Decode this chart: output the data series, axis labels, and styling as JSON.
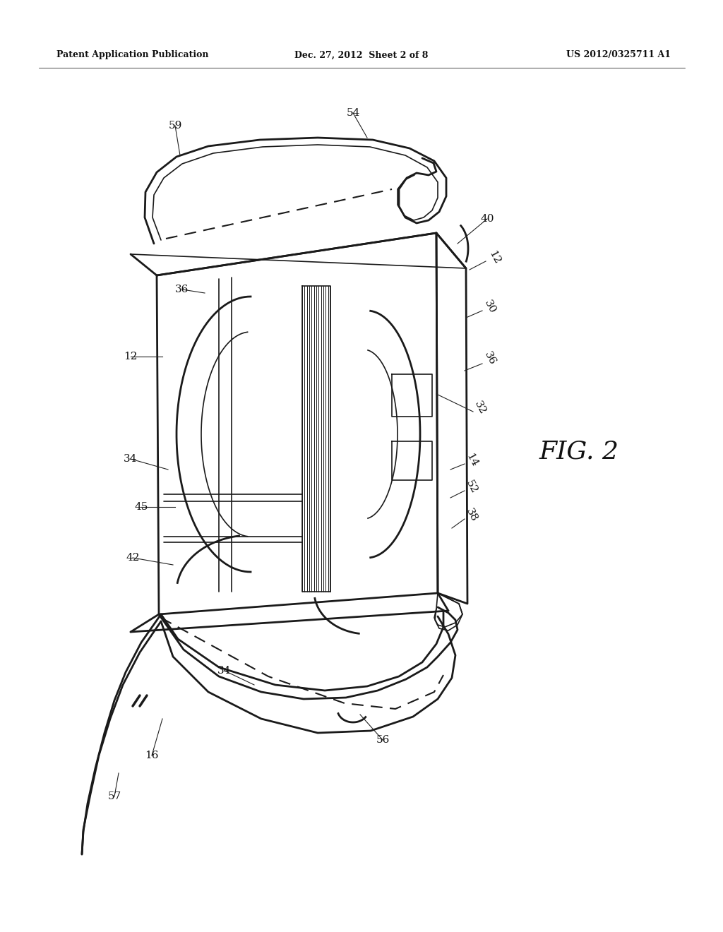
{
  "background_color": "#ffffff",
  "header_left": "Patent Application Publication",
  "header_center": "Dec. 27, 2012  Sheet 2 of 8",
  "header_right": "US 2012/0325711 A1",
  "fig_label": "FIG. 2",
  "line_color": "#1a1a1a",
  "leader_color": "#222222"
}
